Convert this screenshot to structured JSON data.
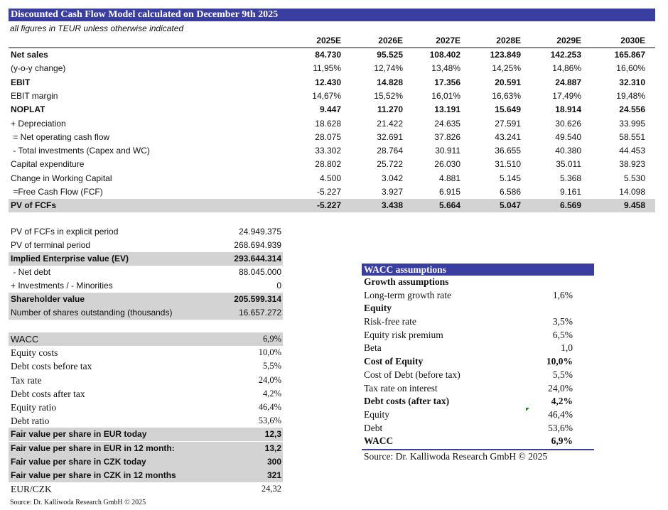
{
  "title": "Discounted Cash Flow Model calculated on December 9th 2025",
  "subtitle": "all figures in TEUR unless otherwise indicated",
  "years": [
    "2025E",
    "2026E",
    "2027E",
    "2028E",
    "2029E",
    "2030E"
  ],
  "dcf_rows": [
    {
      "label": "Net sales",
      "bold": true,
      "values": [
        "84.730",
        "95.525",
        "108.402",
        "123.849",
        "142.253",
        "165.867"
      ]
    },
    {
      "label": "(y-o-y change)",
      "values": [
        "11,95%",
        "12,74%",
        "13,48%",
        "14,25%",
        "14,86%",
        "16,60%"
      ]
    },
    {
      "label": "EBIT",
      "bold": true,
      "values": [
        "12.430",
        "14.828",
        "17.356",
        "20.591",
        "24.887",
        "32.310"
      ]
    },
    {
      "label": "EBIT margin",
      "values": [
        "14,67%",
        "15,52%",
        "16,01%",
        "16,63%",
        "17,49%",
        "19,48%"
      ]
    },
    {
      "label": "NOPLAT",
      "bold": true,
      "values": [
        "9.447",
        "11.270",
        "13.191",
        "15.649",
        "18.914",
        "24.556"
      ]
    },
    {
      "label": "+ Depreciation",
      "values": [
        "18.628",
        "21.422",
        "24.635",
        "27.591",
        "30.626",
        "33.995"
      ]
    },
    {
      "label": " = Net operating cash flow",
      "values": [
        "28.075",
        "32.691",
        "37.826",
        "43.241",
        "49.540",
        "58.551"
      ]
    },
    {
      "label": " - Total investments (Capex and WC)",
      "values": [
        "33.302",
        "28.764",
        "30.911",
        "36.655",
        "40.380",
        "44.453"
      ]
    },
    {
      "label": "Capital expenditure",
      "values": [
        "28.802",
        "25.722",
        "26.030",
        "31.510",
        "35.011",
        "38.923"
      ]
    },
    {
      "label": "Change in Working Capital",
      "values": [
        "4.500",
        "3.042",
        "4.881",
        "5.145",
        "5.368",
        "5.530"
      ]
    },
    {
      "label": " =Free Cash Flow (FCF)",
      "values": [
        "-5.227",
        "3.927",
        "6.915",
        "6.586",
        "9.161",
        "14.098"
      ]
    },
    {
      "label": "PV of FCFs",
      "bold": true,
      "gray": true,
      "values": [
        "-5.227",
        "3.438",
        "5.664",
        "5.047",
        "6.569",
        "9.458"
      ]
    }
  ],
  "valuation_rows": [
    {
      "label": "PV of FCFs in explicit period",
      "value": "24.949.375"
    },
    {
      "label": "PV of terminal period",
      "value": "268.694.939"
    },
    {
      "label": "Implied Enterprise value (EV)",
      "value": "293.644.314",
      "bold": true,
      "gray": true
    },
    {
      "label": " - Net debt",
      "value": "88.045.000"
    },
    {
      "label": "+ Investments / - Minorities",
      "value": "0"
    },
    {
      "label": "Shareholder value",
      "value": "205.599.314",
      "bold": true,
      "gray": true
    },
    {
      "label": "Number of shares outstanding (thousands)",
      "value": "16.657.272",
      "gray": true
    }
  ],
  "wacc_rows": [
    {
      "label": "WACC",
      "value": "6,9%",
      "gray": true,
      "serifValue": true
    },
    {
      "label": "Equity costs",
      "value": "10,0%",
      "serif": true
    },
    {
      "label": "Debt costs before tax",
      "value": "5,5%",
      "serif": true
    },
    {
      "label": "Tax rate",
      "value": "24,0%",
      "serif": true
    },
    {
      "label": "Debt costs after tax",
      "value": "4,2%",
      "serif": true
    },
    {
      "label": "Equity ratio",
      "value": "46,4%",
      "serif": true
    },
    {
      "label": "Debt ratio",
      "value": "53,6%",
      "serif": true
    },
    {
      "label": "Fair value per share in EUR today",
      "value": "12,3",
      "bold": true,
      "gray": true
    },
    {
      "label": "Fair value per share in EUR in 12 month:",
      "value": "13,2",
      "bold": true,
      "gray": true
    },
    {
      "label": "Fair value per share in CZK today",
      "value": "300",
      "bold": true,
      "gray": true
    },
    {
      "label": "Fair value per share in CZK in 12 months",
      "value": "321",
      "bold": true,
      "gray": true
    },
    {
      "label": "EUR/CZK",
      "value": "24,32",
      "serif": true
    }
  ],
  "left_source": "Source: Dr. Kalliwoda Research GmbH © 2025",
  "wacc_box": {
    "title": "WACC assumptions",
    "rows": [
      {
        "label": "Growth assumptions",
        "value": "",
        "bold": true
      },
      {
        "label": "Long-term growth rate",
        "value": "1,6%"
      },
      {
        "label": "Equity",
        "value": "",
        "bold": true
      },
      {
        "label": "Risk-free rate",
        "value": "3,5%"
      },
      {
        "label": "Equity risk premium",
        "value": "6,5%"
      },
      {
        "label": "Beta",
        "value": "1,0"
      },
      {
        "label": "Cost of Equity",
        "value": "10,0%",
        "bold": true
      },
      {
        "label": "Cost of Debt (before tax)",
        "value": "5,5%"
      },
      {
        "label": "Tax rate on interest",
        "value": "24,0%"
      },
      {
        "label": "Debt costs (after tax)",
        "value": "4,2%",
        "bold": true
      },
      {
        "label": "Equity",
        "value": "46,4%"
      },
      {
        "label": "Debt",
        "value": "53,6%"
      },
      {
        "label": "WACC",
        "value": "6,9%",
        "bold": true
      }
    ],
    "source": "Source: Dr. Kalliwoda Research GmbH © 2025"
  },
  "colors": {
    "header_blue": "#3a3ea0",
    "highlight_gray": "#d3d3d3"
  }
}
